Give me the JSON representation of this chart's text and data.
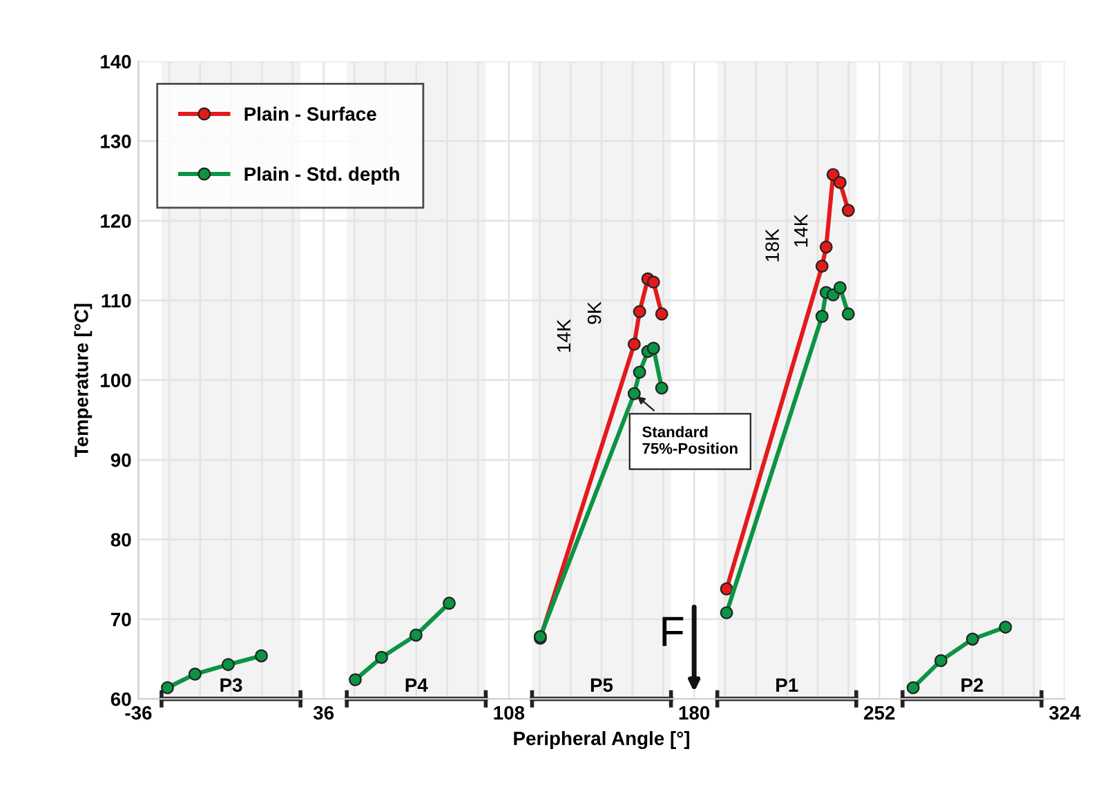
{
  "chart_data": {
    "type": "line",
    "xlabel": "Peripheral Angle [°]",
    "ylabel": "Temperature [°C]",
    "xlim": [
      -36,
      324
    ],
    "ylim": [
      60,
      140
    ],
    "xticks": [
      -36,
      {
        "value": -24,
        "label": null
      },
      {
        "value": -12,
        "label": null
      },
      {
        "value": 0,
        "label": null
      },
      {
        "value": 12,
        "label": null
      },
      {
        "value": 24,
        "label": null
      },
      36,
      {
        "value": 48,
        "label": null
      },
      {
        "value": 60,
        "label": null
      },
      {
        "value": 72,
        "label": null
      },
      {
        "value": 84,
        "label": null
      },
      {
        "value": 96,
        "label": null
      },
      108,
      {
        "value": 120,
        "label": null
      },
      {
        "value": 132,
        "label": null
      },
      {
        "value": 144,
        "label": null
      },
      {
        "value": 156,
        "label": null
      },
      {
        "value": 168,
        "label": null
      },
      180,
      {
        "value": 192,
        "label": null
      },
      {
        "value": 204,
        "label": null
      },
      {
        "value": 216,
        "label": null
      },
      {
        "value": 228,
        "label": null
      },
      {
        "value": 240,
        "label": null
      },
      252,
      {
        "value": 264,
        "label": null
      },
      {
        "value": 276,
        "label": null
      },
      {
        "value": 288,
        "label": null
      },
      {
        "value": 300,
        "label": null
      },
      {
        "value": 312,
        "label": null
      },
      324
    ],
    "yticks": [
      60,
      70,
      80,
      90,
      100,
      110,
      120,
      130,
      140
    ],
    "grid": true,
    "legend": "top left",
    "marker": "circle",
    "line_style": "solid",
    "series": [
      {
        "name": "Plain - Surface",
        "color": "#e31a1c",
        "x": [
          120.2,
          156.7,
          158.8,
          162,
          164.2,
          167.4,
          180,
          192.6,
          229.7,
          231.3,
          234,
          236.7,
          239.9
        ],
        "values": [
          67.6,
          104.5,
          108.6,
          112.7,
          112.3,
          108.3,
          null,
          73.8,
          114.3,
          116.7,
          125.8,
          124.8,
          121.3
        ]
      },
      {
        "name": "Plain - Std. depth",
        "color": "#0b9444",
        "x": [
          -24.7,
          -14,
          -1.1,
          11.8,
          30,
          48.3,
          58.5,
          71.9,
          84.8,
          100,
          120.2,
          156.7,
          158.8,
          162,
          164.2,
          167.4,
          180,
          192.6,
          229.7,
          231.3,
          234,
          236.7,
          239.9,
          250,
          265.1,
          275.9,
          288.2,
          301
        ],
        "values": [
          61.4,
          63.1,
          64.3,
          65.4,
          null,
          62.4,
          65.2,
          68.0,
          72.0,
          null,
          67.8,
          98.3,
          101,
          103.6,
          104,
          99,
          null,
          70.8,
          108,
          111,
          110.7,
          111.6,
          108.3,
          null,
          61.4,
          64.8,
          67.5,
          69
        ]
      }
    ],
    "bands": [
      {
        "axis": "x",
        "from": -27,
        "to": 27,
        "label": "P3"
      },
      {
        "axis": "x",
        "from": 45,
        "to": 99,
        "label": "P4"
      },
      {
        "axis": "x",
        "from": 117,
        "to": 171,
        "label": "P5"
      },
      {
        "axis": "x",
        "from": 189,
        "to": 243,
        "label": "P1"
      },
      {
        "axis": "x",
        "from": 261,
        "to": 315,
        "label": "P2"
      }
    ],
    "annotations": [
      "14K",
      "9K",
      "18K",
      "14K",
      {
        "text": "Standard\n75%-Position",
        "x": 156.7,
        "y": 98.3
      },
      "F"
    ]
  }
}
